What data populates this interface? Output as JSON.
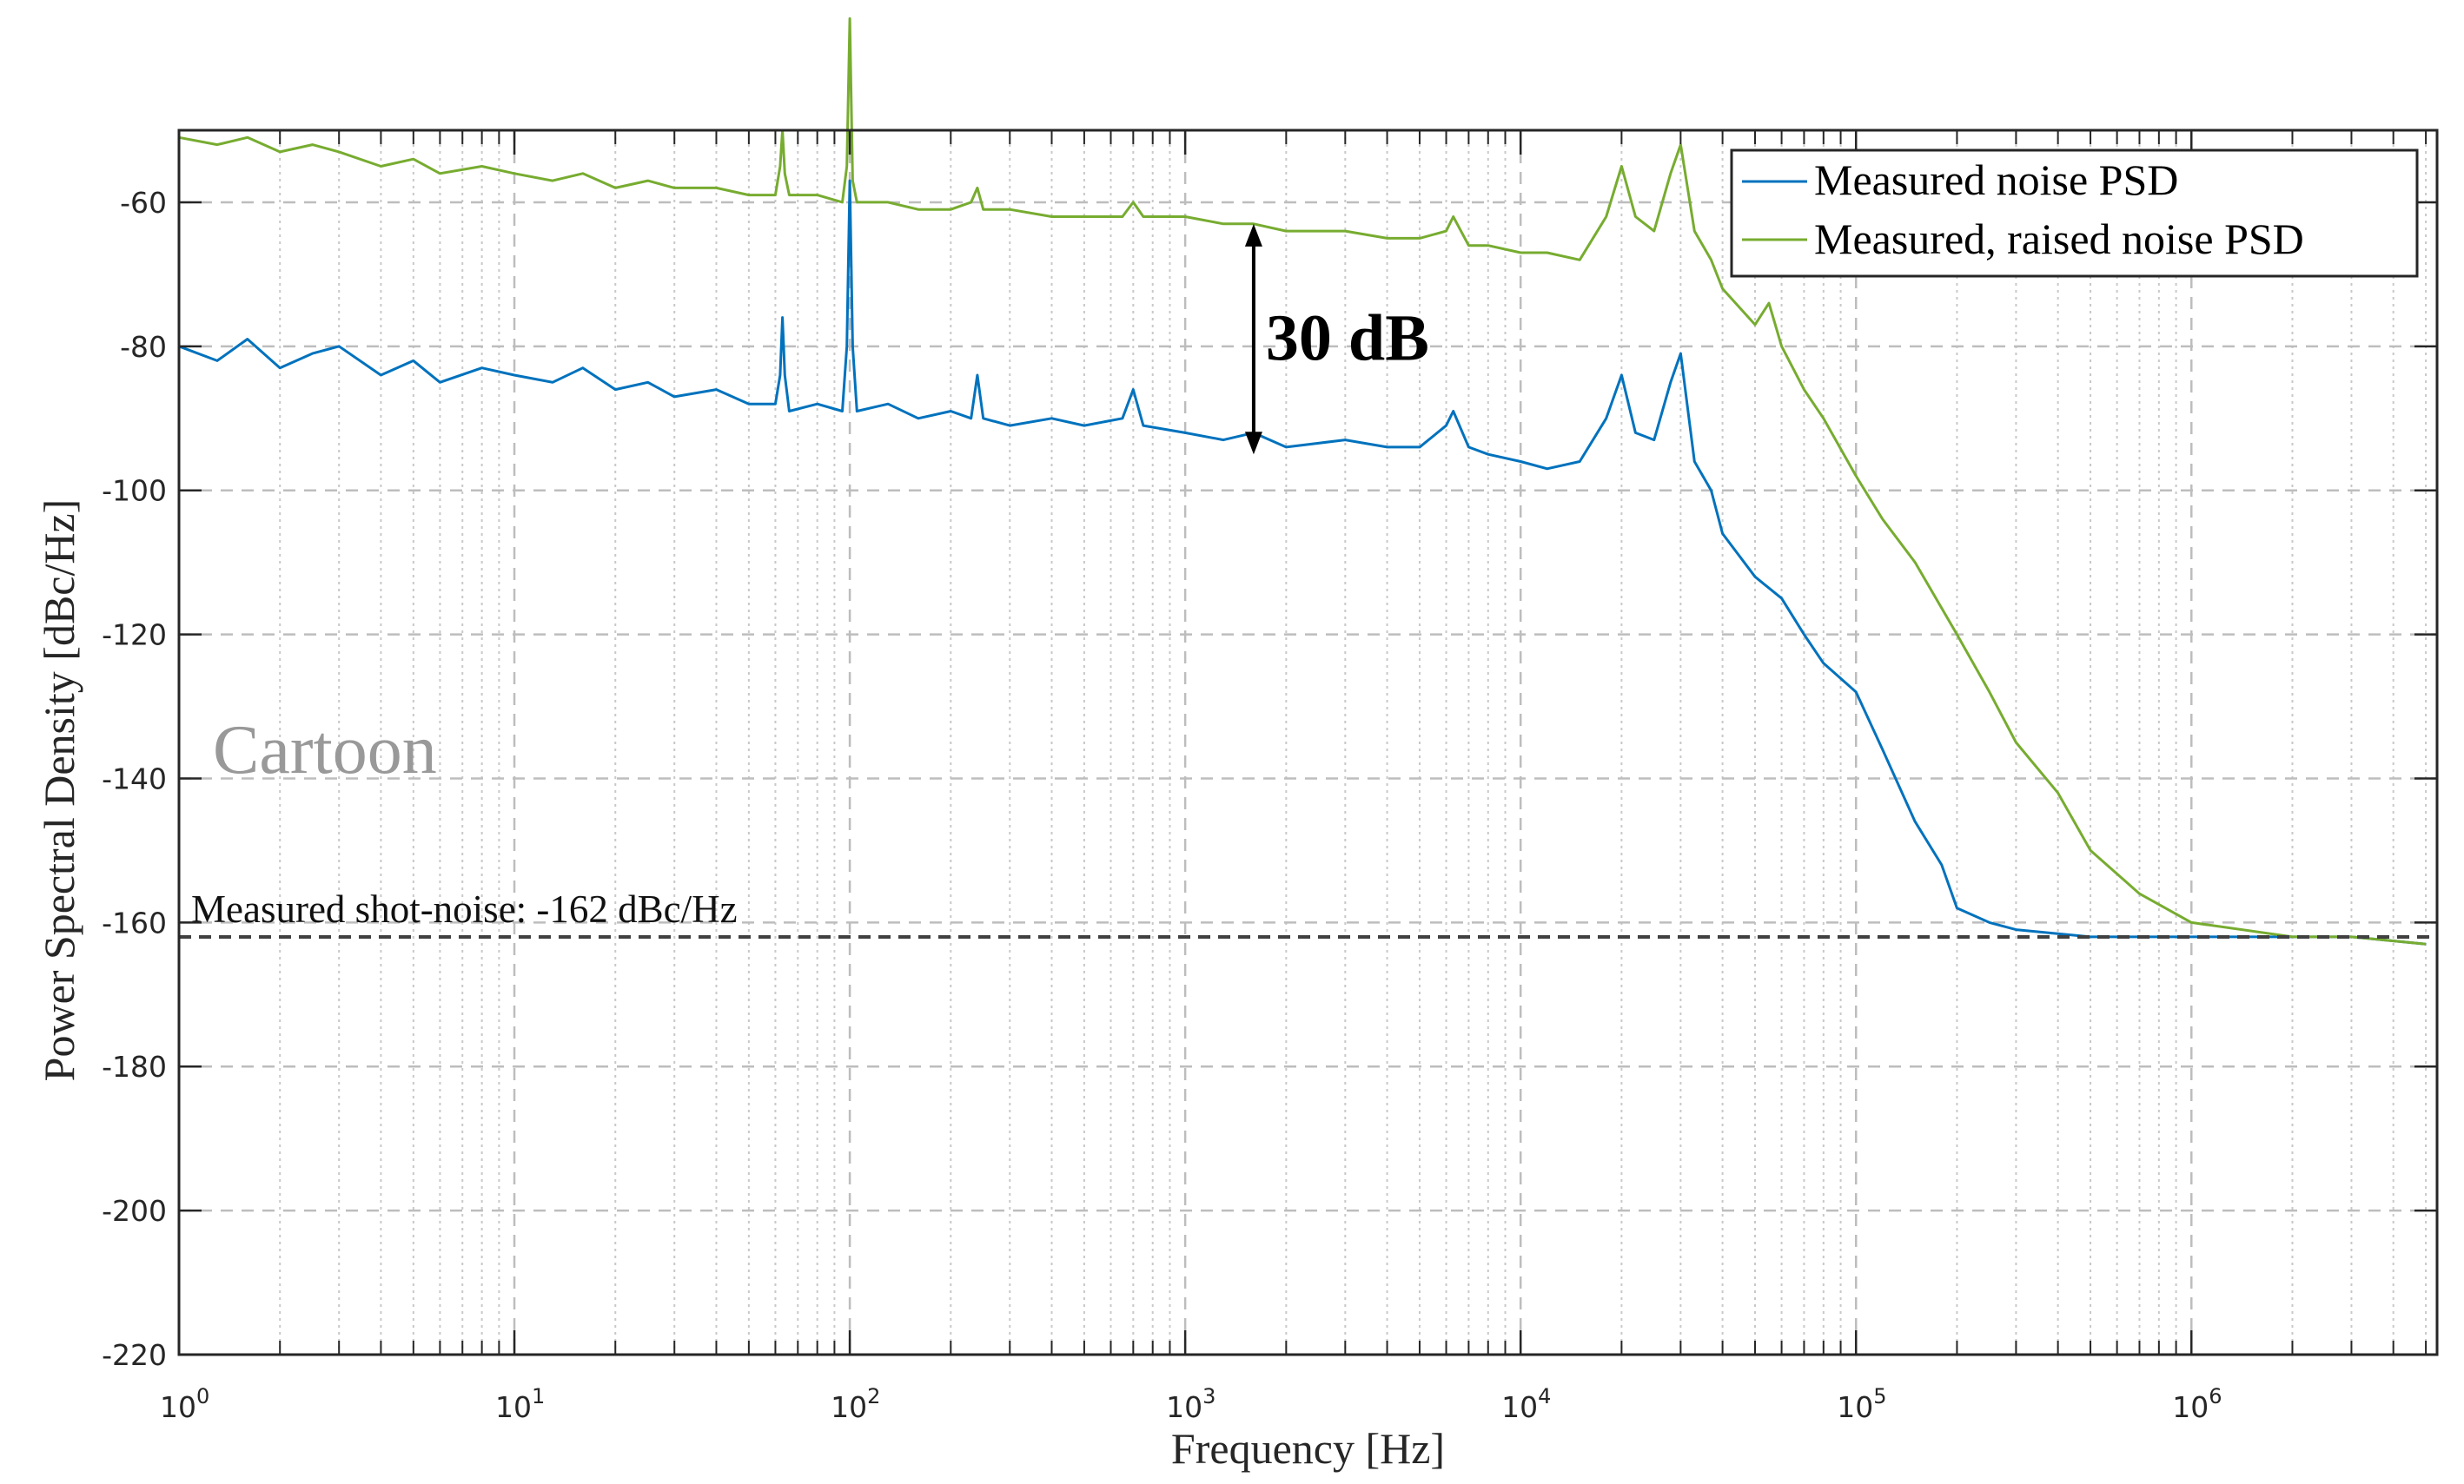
{
  "chart_data": {
    "type": "line",
    "title": "",
    "xlabel": "Frequency [Hz]",
    "ylabel": "Power Spectral Density [dBc/Hz]",
    "xscale": "log",
    "xlim": [
      1,
      5400000
    ],
    "ylim": [
      -220,
      -50
    ],
    "x_ticks": [
      1,
      10,
      100,
      1000,
      10000,
      100000,
      1000000
    ],
    "x_tick_labels": [
      {
        "base": "10",
        "exp": "0"
      },
      {
        "base": "10",
        "exp": "1"
      },
      {
        "base": "10",
        "exp": "2"
      },
      {
        "base": "10",
        "exp": "3"
      },
      {
        "base": "10",
        "exp": "4"
      },
      {
        "base": "10",
        "exp": "5"
      },
      {
        "base": "10",
        "exp": "6"
      }
    ],
    "y_ticks": [
      -60,
      -80,
      -100,
      -120,
      -140,
      -160,
      -180,
      -200,
      -220
    ],
    "grid": true,
    "legend": "top-right",
    "series": [
      {
        "name": "Measured noise PSD",
        "color": "#0072BD",
        "x": [
          1,
          1.3,
          1.6,
          2,
          2.5,
          3,
          4,
          5,
          6,
          8,
          10,
          13,
          16,
          20,
          25,
          30,
          40,
          50,
          60,
          62,
          63,
          64,
          66,
          80,
          95,
          98,
          100,
          102,
          105,
          130,
          160,
          200,
          230,
          240,
          250,
          300,
          400,
          500,
          650,
          700,
          750,
          1000,
          1300,
          1600,
          2000,
          3000,
          4000,
          5000,
          6000,
          6300,
          7000,
          8000,
          10000,
          12000,
          15000,
          18000,
          20000,
          22000,
          25000,
          28000,
          30000,
          33000,
          37000,
          40000,
          50000,
          60000,
          70000,
          80000,
          100000,
          120000,
          150000,
          180000,
          200000,
          250000,
          300000,
          500000,
          1000000,
          2000000,
          3000000,
          5000000
        ],
        "y": [
          -80,
          -82,
          -79,
          -83,
          -81,
          -80,
          -84,
          -82,
          -85,
          -83,
          -84,
          -85,
          -83,
          -86,
          -85,
          -87,
          -86,
          -88,
          -88,
          -84,
          -76,
          -84,
          -89,
          -88,
          -89,
          -80,
          -57,
          -80,
          -89,
          -88,
          -90,
          -89,
          -90,
          -84,
          -90,
          -91,
          -90,
          -91,
          -90,
          -86,
          -91,
          -92,
          -93,
          -92,
          -94,
          -93,
          -94,
          -94,
          -91,
          -89,
          -94,
          -95,
          -96,
          -97,
          -96,
          -90,
          -84,
          -92,
          -93,
          -85,
          -81,
          -96,
          -100,
          -106,
          -112,
          -115,
          -120,
          -124,
          -128,
          -136,
          -146,
          -152,
          -158,
          -160,
          -161,
          -162,
          -162,
          -162,
          -162,
          -163
        ]
      },
      {
        "name": "Measured, raised noise PSD",
        "color": "#77AC30",
        "x": [
          1,
          1.3,
          1.6,
          2,
          2.5,
          3,
          4,
          5,
          6,
          8,
          10,
          13,
          16,
          20,
          25,
          30,
          40,
          50,
          60,
          62,
          63,
          64,
          66,
          80,
          95,
          98,
          100,
          102,
          105,
          130,
          160,
          200,
          230,
          240,
          250,
          300,
          400,
          500,
          650,
          700,
          750,
          1000,
          1300,
          1600,
          2000,
          3000,
          4000,
          5000,
          6000,
          6300,
          7000,
          8000,
          10000,
          12000,
          15000,
          18000,
          20000,
          22000,
          25000,
          28000,
          30000,
          33000,
          37000,
          40000,
          50000,
          55000,
          60000,
          70000,
          80000,
          100000,
          120000,
          150000,
          200000,
          250000,
          300000,
          400000,
          500000,
          700000,
          1000000,
          2000000,
          3000000,
          5000000
        ],
        "y": [
          -51,
          -52,
          -51,
          -53,
          -52,
          -53,
          -55,
          -54,
          -56,
          -55,
          -56,
          -57,
          -56,
          -58,
          -57,
          -58,
          -58,
          -59,
          -59,
          -55,
          -50,
          -56,
          -59,
          -59,
          -60,
          -55,
          -34.5,
          -57,
          -60,
          -60,
          -61,
          -61,
          -60,
          -58,
          -61,
          -61,
          -62,
          -62,
          -62,
          -60,
          -62,
          -62,
          -63,
          -63,
          -64,
          -64,
          -65,
          -65,
          -64,
          -62,
          -66,
          -66,
          -67,
          -67,
          -68,
          -62,
          -55,
          -62,
          -64,
          -56,
          -52,
          -64,
          -68,
          -72,
          -77,
          -74,
          -80,
          -86,
          -90,
          -98,
          -104,
          -110,
          -120,
          -128,
          -135,
          -142,
          -150,
          -156,
          -160,
          -162,
          -162,
          -163
        ]
      }
    ],
    "reference_line": {
      "label": "Measured shot-noise: -162 dBc/Hz",
      "y": -162,
      "color": "#404040"
    },
    "annotations": [
      {
        "text": "30 dB",
        "x": 1600,
        "y_from": -63,
        "y_to": -95
      },
      {
        "text": "Cartoon",
        "color": "#999999"
      }
    ]
  }
}
